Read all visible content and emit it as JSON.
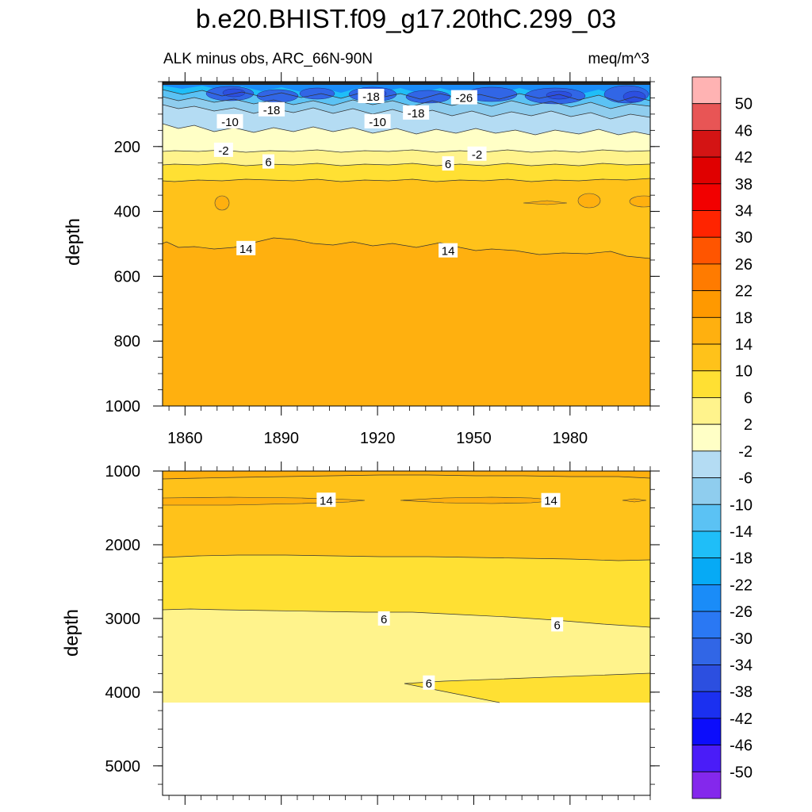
{
  "chart_data": {
    "type": "contour",
    "title": "b.e20.BHIST.f09_g17.20thC.299_03",
    "subtitle_left": "ALK minus obs, ARC_66N-90N",
    "subtitle_right": "meq/m^3",
    "xlabel": "",
    "x_ticks": [
      "1860",
      "1890",
      "1920",
      "1950",
      "1980"
    ],
    "xlim": [
      1853,
      2005
    ],
    "colorbar": {
      "levels": [
        "50",
        "46",
        "42",
        "38",
        "34",
        "30",
        "26",
        "22",
        "18",
        "14",
        "10",
        "6",
        "2",
        "-2",
        "-6",
        "-10",
        "-14",
        "-18",
        "-22",
        "-26",
        "-30",
        "-34",
        "-38",
        "-42",
        "-46",
        "-50"
      ],
      "colors": [
        "#ffb3b3",
        "#e85555",
        "#d41414",
        "#e00000",
        "#f20000",
        "#ff2400",
        "#ff5500",
        "#ff7b00",
        "#ff9900",
        "#ffb00f",
        "#ffc21a",
        "#ffe033",
        "#fff38c",
        "#ffffc6",
        "#b4dcf3",
        "#8fcdee",
        "#5bc2f4",
        "#1fbef8",
        "#06aaf5",
        "#1a8cf8",
        "#2a78f3",
        "#3166e6",
        "#2c4fe0",
        "#1b30f0",
        "#0c0dfb",
        "#4a1cf8",
        "#8428ec"
      ]
    },
    "panels": [
      {
        "name": "upper",
        "ylabel": "depth",
        "ylim": [
          0,
          1000
        ],
        "y_ticks": [
          "200",
          "400",
          "600",
          "800",
          "1000"
        ],
        "contour_labels": [
          {
            "text": "-18",
            "year": 1918,
            "depth": 44
          },
          {
            "text": "-26",
            "year": 1947,
            "depth": 48
          },
          {
            "text": "-18",
            "year": 1887,
            "depth": 85
          },
          {
            "text": "-18",
            "year": 1932,
            "depth": 95
          },
          {
            "text": "-10",
            "year": 1874,
            "depth": 122
          },
          {
            "text": "-10",
            "year": 1920,
            "depth": 122
          },
          {
            "text": "-2",
            "year": 1872,
            "depth": 210
          },
          {
            "text": "-2",
            "year": 1951,
            "depth": 222
          },
          {
            "text": "6",
            "year": 1886,
            "depth": 246
          },
          {
            "text": "6",
            "year": 1942,
            "depth": 252
          },
          {
            "text": "14",
            "year": 1879,
            "depth": 513
          },
          {
            "text": "14",
            "year": 1942,
            "depth": 520
          }
        ]
      },
      {
        "name": "lower",
        "ylabel": "depth",
        "ylim": [
          1000,
          5400
        ],
        "y_ticks": [
          "1000",
          "2000",
          "3000",
          "4000",
          "5000"
        ],
        "contour_labels": [
          {
            "text": "14",
            "year": 1904,
            "depth": 1390
          },
          {
            "text": "14",
            "year": 1974,
            "depth": 1395
          },
          {
            "text": "6",
            "year": 1922,
            "depth": 3000
          },
          {
            "text": "6",
            "year": 1976,
            "depth": 3080
          },
          {
            "text": "6",
            "year": 1936,
            "depth": 3870
          }
        ]
      }
    ]
  }
}
